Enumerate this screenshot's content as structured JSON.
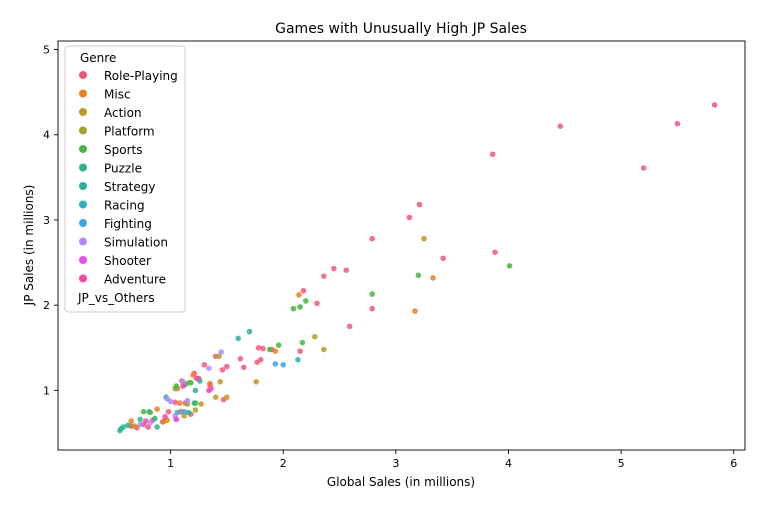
{
  "chart_data": {
    "type": "scatter",
    "title": "Games with Unusually High JP Sales",
    "xlabel": "Global Sales (in millions)",
    "ylabel": "JP Sales (in millions)",
    "xlim": [
      0.0,
      6.1
    ],
    "ylim": [
      0.3,
      5.1
    ],
    "xticks": [
      1,
      2,
      3,
      4,
      5,
      6
    ],
    "yticks": [
      1,
      2,
      3,
      4,
      5
    ],
    "grid": false,
    "legend": {
      "title": "Genre",
      "position": "top-left",
      "extra_entry": "JP_vs_Others"
    },
    "series": [
      {
        "name": "Role-Playing",
        "color": "#f0587b",
        "points": [
          [
            5.83,
            4.35
          ],
          [
            5.5,
            4.13
          ],
          [
            4.46,
            4.1
          ],
          [
            5.2,
            3.61
          ],
          [
            3.86,
            3.77
          ],
          [
            3.21,
            3.18
          ],
          [
            3.12,
            3.03
          ],
          [
            3.42,
            2.55
          ],
          [
            3.88,
            2.62
          ],
          [
            2.79,
            2.78
          ],
          [
            2.45,
            2.43
          ],
          [
            2.56,
            2.41
          ],
          [
            2.36,
            2.34
          ],
          [
            2.18,
            2.17
          ],
          [
            2.3,
            2.02
          ],
          [
            2.79,
            1.96
          ],
          [
            2.59,
            1.75
          ],
          [
            2.15,
            1.46
          ],
          [
            1.78,
            1.5
          ],
          [
            1.82,
            1.49
          ],
          [
            1.9,
            1.48
          ],
          [
            1.62,
            1.37
          ],
          [
            1.8,
            1.36
          ],
          [
            1.77,
            1.33
          ],
          [
            1.4,
            1.4
          ],
          [
            1.65,
            1.27
          ],
          [
            1.5,
            1.28
          ],
          [
            1.46,
            1.24
          ],
          [
            1.3,
            1.3
          ],
          [
            1.21,
            1.2
          ],
          [
            1.25,
            1.14
          ],
          [
            1.1,
            1.11
          ],
          [
            1.35,
            1.06
          ],
          [
            1.04,
            0.86
          ],
          [
            1.13,
            0.85
          ],
          [
            1.47,
            0.89
          ],
          [
            1.09,
            0.75
          ],
          [
            0.98,
            0.75
          ],
          [
            0.84,
            0.65
          ],
          [
            0.93,
            0.63
          ],
          [
            0.76,
            0.6
          ],
          [
            0.8,
            0.57
          ],
          [
            0.7,
            0.56
          ],
          [
            0.65,
            0.58
          ],
          [
            1.05,
            0.66
          ],
          [
            1.18,
            0.72
          ]
        ]
      },
      {
        "name": "Misc",
        "color": "#ee7f20",
        "points": [
          [
            3.17,
            1.93
          ],
          [
            3.33,
            2.32
          ],
          [
            2.14,
            2.12
          ],
          [
            1.93,
            1.46
          ],
          [
            1.35,
            1.08
          ],
          [
            1.08,
            0.85
          ],
          [
            0.88,
            0.78
          ],
          [
            0.65,
            0.64
          ],
          [
            0.94,
            0.64
          ],
          [
            1.06,
            1.02
          ],
          [
            1.2,
            1.18
          ]
        ]
      },
      {
        "name": "Action",
        "color": "#c5951f",
        "points": [
          [
            3.25,
            2.78
          ],
          [
            1.76,
            1.1
          ],
          [
            1.44,
            1.1
          ],
          [
            1.4,
            0.92
          ],
          [
            1.5,
            0.92
          ],
          [
            1.27,
            0.84
          ],
          [
            0.97,
            0.65
          ],
          [
            0.68,
            0.58
          ],
          [
            1.12,
            0.7
          ]
        ]
      },
      {
        "name": "Platform",
        "color": "#a3a52a",
        "points": [
          [
            2.36,
            1.48
          ],
          [
            2.28,
            1.63
          ],
          [
            1.43,
            1.4
          ],
          [
            1.16,
            1.09
          ],
          [
            1.04,
            1.02
          ],
          [
            1.15,
            0.84
          ],
          [
            0.82,
            0.74
          ],
          [
            1.22,
            0.77
          ]
        ]
      },
      {
        "name": "Sports",
        "color": "#46b73c",
        "points": [
          [
            4.01,
            2.46
          ],
          [
            3.2,
            2.35
          ],
          [
            2.79,
            2.13
          ],
          [
            2.2,
            2.05
          ],
          [
            2.15,
            1.98
          ],
          [
            2.09,
            1.96
          ],
          [
            2.17,
            1.56
          ],
          [
            1.96,
            1.53
          ],
          [
            1.88,
            1.48
          ],
          [
            1.18,
            1.09
          ],
          [
            1.05,
            1.05
          ],
          [
            1.22,
            0.85
          ],
          [
            0.76,
            0.75
          ]
        ]
      },
      {
        "name": "Puzzle",
        "color": "#2cb57e",
        "points": [
          [
            1.13,
            1.07
          ],
          [
            1.21,
            0.85
          ],
          [
            1.16,
            0.74
          ],
          [
            0.86,
            0.67
          ],
          [
            0.81,
            0.75
          ],
          [
            0.88,
            0.57
          ],
          [
            0.62,
            0.59
          ],
          [
            0.56,
            0.55
          ]
        ]
      },
      {
        "name": "Strategy",
        "color": "#2db09a",
        "points": [
          [
            1.7,
            1.69
          ],
          [
            1.6,
            1.61
          ],
          [
            1.26,
            1.11
          ],
          [
            1.22,
            1.0
          ],
          [
            0.96,
            0.92
          ],
          [
            0.73,
            0.66
          ],
          [
            0.58,
            0.57
          ],
          [
            0.55,
            0.53
          ]
        ]
      },
      {
        "name": "Racing",
        "color": "#33afbd",
        "points": [
          [
            2.13,
            1.36
          ],
          [
            1.06,
            0.74
          ]
        ]
      },
      {
        "name": "Fighting",
        "color": "#3ba6e6",
        "points": [
          [
            1.93,
            1.31
          ],
          [
            2.0,
            1.3
          ],
          [
            1.12,
            0.75
          ]
        ]
      },
      {
        "name": "Simulation",
        "color": "#b28af5",
        "points": [
          [
            1.45,
            1.45
          ],
          [
            1.34,
            1.26
          ],
          [
            1.11,
            1.1
          ],
          [
            0.97,
            0.9
          ],
          [
            1.15,
            0.88
          ],
          [
            1.0,
            0.87
          ],
          [
            0.82,
            0.62
          ],
          [
            0.73,
            0.6
          ],
          [
            1.04,
            0.7
          ]
        ]
      },
      {
        "name": "Shooter",
        "color": "#ee4ded",
        "points": [
          [
            1.05,
            0.66
          ],
          [
            1.36,
            1.02
          ]
        ]
      },
      {
        "name": "Adventure",
        "color": "#f646ac",
        "points": [
          [
            1.34,
            1.0
          ],
          [
            1.11,
            1.05
          ],
          [
            0.95,
            0.69
          ],
          [
            0.78,
            0.64
          ],
          [
            1.23,
            1.14
          ]
        ]
      }
    ]
  }
}
